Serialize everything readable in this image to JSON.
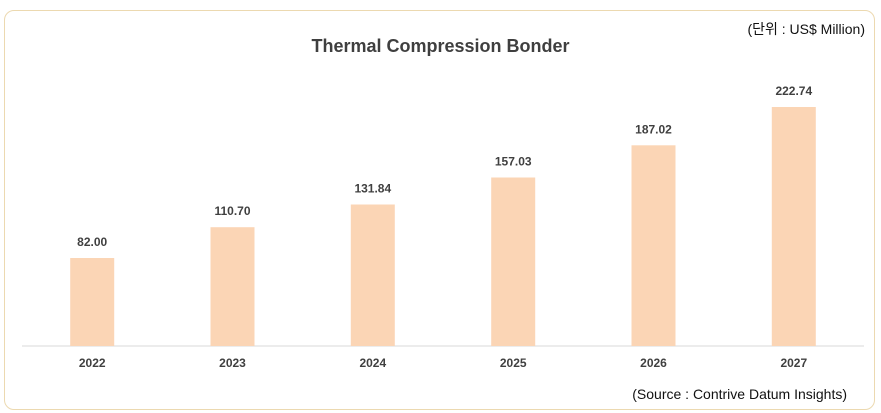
{
  "unit_note": "(단위 : US$ Million)",
  "source_note": "(Source : Contrive Datum Insights)",
  "colors": {
    "bar": "#fbd5b5",
    "axis": "#d9d9d9",
    "frame": "#ecd9b0"
  },
  "chart_data": {
    "type": "bar",
    "title": "Thermal Compression Bonder",
    "xlabel": "",
    "ylabel": "",
    "categories": [
      "2022",
      "2023",
      "2024",
      "2025",
      "2026",
      "2027"
    ],
    "values": [
      82.0,
      110.7,
      131.84,
      157.03,
      187.02,
      222.74
    ],
    "value_labels": [
      "82.00",
      "110.70",
      "131.84",
      "157.03",
      "187.02",
      "222.74"
    ],
    "ylim": [
      0,
      235
    ],
    "grid": false,
    "legend": "none"
  }
}
